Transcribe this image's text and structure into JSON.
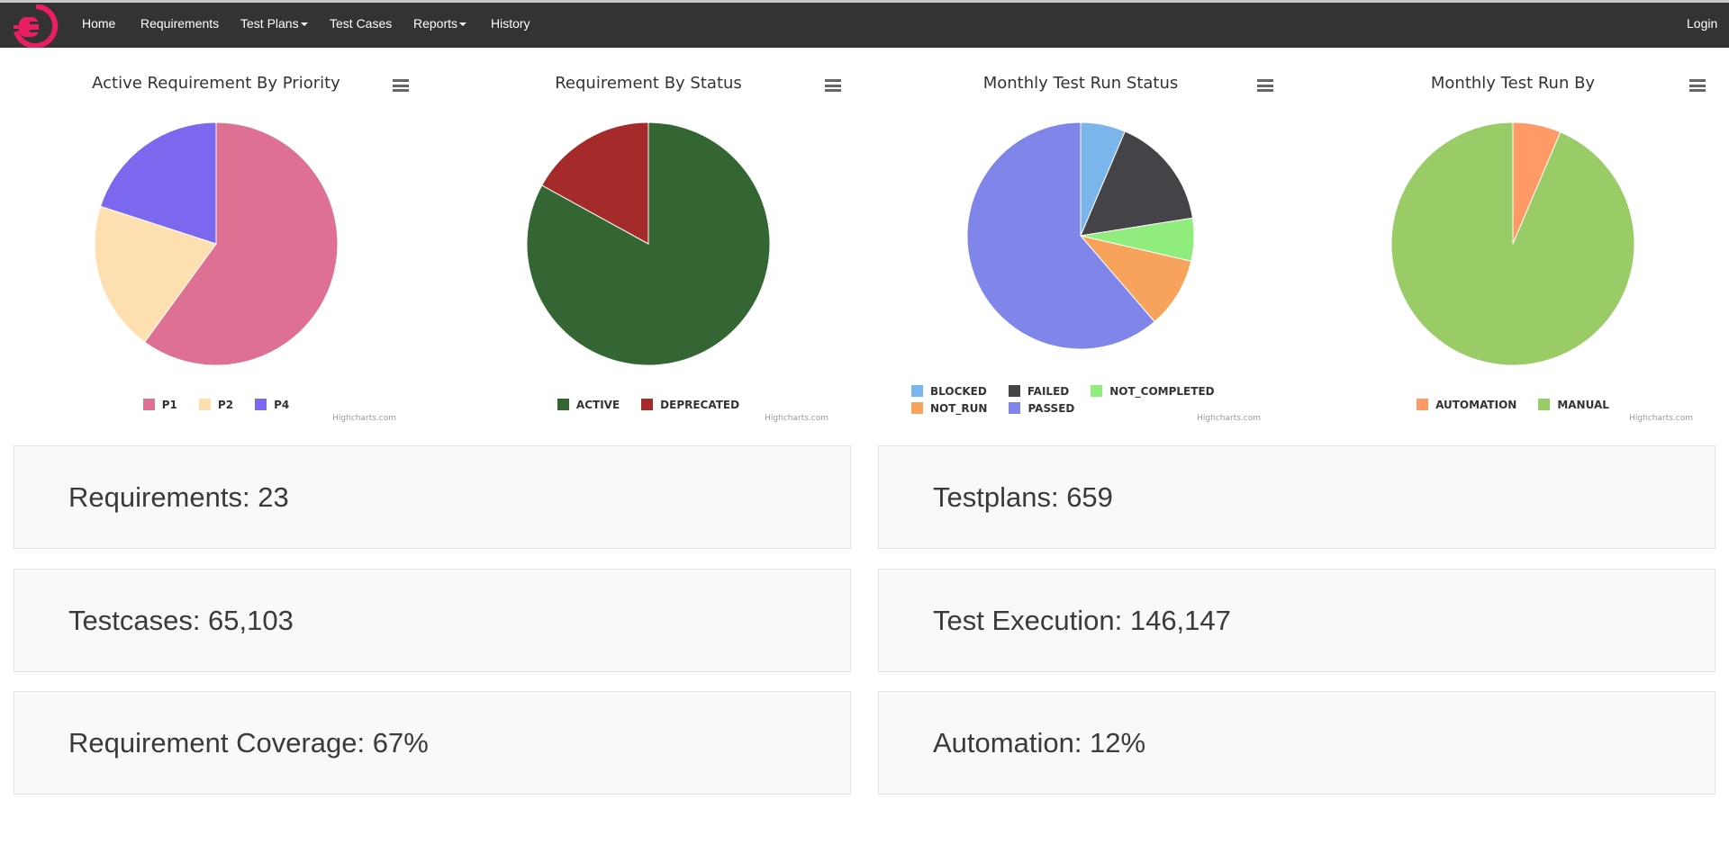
{
  "nav": {
    "items": [
      "Home",
      "Requirements",
      "Test Plans",
      "Test Cases",
      "Reports",
      "History"
    ],
    "login": "Login"
  },
  "charts": [
    {
      "title": "Active Requirement By Priority",
      "type": "pie",
      "slices": [
        {
          "name": "P1",
          "value": 60,
          "color": "#de7094"
        },
        {
          "name": "P2",
          "value": 20,
          "color": "#fddfb0"
        },
        {
          "name": "P4",
          "value": 20,
          "color": "#7b68ee"
        }
      ]
    },
    {
      "title": "Requirement By Status",
      "type": "pie",
      "slices": [
        {
          "name": "ACTIVE",
          "value": 83,
          "color": "#336633"
        },
        {
          "name": "DEPRECATED",
          "value": 17,
          "color": "#a52a2a"
        }
      ]
    },
    {
      "title": "Monthly Test Run Status",
      "type": "pie",
      "slices": [
        {
          "name": "BLOCKED",
          "value": 6.4,
          "color": "#7cb5ec"
        },
        {
          "name": "FAILED",
          "value": 16.1,
          "color": "#434348"
        },
        {
          "name": "NOT_COMPLETED",
          "value": 6.1,
          "color": "#90ed7d"
        },
        {
          "name": "NOT_RUN",
          "value": 10.1,
          "color": "#f7a35c"
        },
        {
          "name": "PASSED",
          "value": 61.3,
          "color": "#8085e9"
        }
      ]
    },
    {
      "title": "Monthly Test Run By",
      "type": "pie",
      "slices": [
        {
          "name": "AUTOMATION",
          "value": 6.4,
          "color": "#ff9966"
        },
        {
          "name": "MANUAL",
          "value": 93.6,
          "color": "#99cc66"
        }
      ]
    }
  ],
  "credit": "Highcharts.com",
  "stats": [
    {
      "label": "Requirements: 23"
    },
    {
      "label": "Testplans: 659"
    },
    {
      "label": "Testcases: 65,103"
    },
    {
      "label": "Test Execution: 146,147"
    },
    {
      "label": "Requirement Coverage: 67%"
    },
    {
      "label": "Automation: 12%"
    }
  ]
}
